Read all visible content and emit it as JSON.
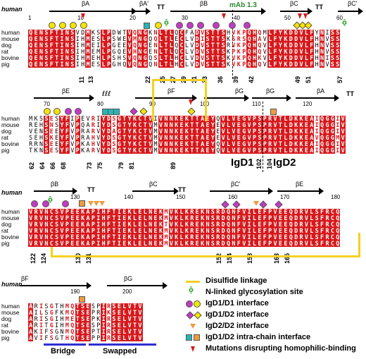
{
  "reference_species": "human",
  "species": [
    "human",
    "mouse",
    "dog",
    "rat",
    "bovine",
    "pig"
  ],
  "blocks": [
    {
      "ss_labels": [
        "βA",
        "βA'",
        "TT",
        "βB",
        "βC",
        "TT",
        "βC'"
      ],
      "ruler": [
        "1",
        "10",
        "20",
        "30",
        "40",
        "50",
        "60"
      ],
      "mab_label": "mAb 1.3",
      "rows": [
        "QENSFTINSVDMKSLPDWTVQNGKNLTLQCFADVSTTSHVKPQHQMLFYKDDVLFYNISS",
        "QENSFTINSIHMESLPSWEVMNGQQLTLECLVDISTTSKSRSQHAVLFYKDDVLFHNVSS",
        "QENSFTINSIHMEILPGEEVQNGENLTLQCLVDVSTTSRVKPQHQVLFYKDDVLFHNVSS",
        "QENSFTINSIHMEMLPGQEVHNGENLTLQCLVDVSTTSKPKPQHQVLFYKDDVLFHNVSS",
        "QENSFTINSIHMEHLPSHSVQNGQSLTLHCLVDVSTTSKVKPQHKVLFYKDDVLFHNISS",
        "QENSFTINSIHMESLPGHQVQNGQNLTLHCLVDVSTTSKVKPQHQVLFYKDDVLFHNVSS"
      ],
      "positions": [
        "11",
        "13",
        "22",
        "25",
        "27",
        "29",
        "31",
        "33",
        "36",
        "39",
        "42",
        "49",
        "51",
        "57"
      ]
    },
    {
      "ss_labels": [
        "βE",
        "βF",
        "βG",
        "βG",
        "βA",
        "TT"
      ],
      "ruler": [
        "70",
        "80",
        "90",
        "100",
        "110",
        "120"
      ],
      "rows": [
        "MKSSESYFIPEVRIYDSGTYKCTVIVNNKEKTTAEYQVLVEGVPSPRVTLDKKEAIQGGIV",
        "REHSNSYFVPQARIYDSGTYKCTVMVNNKEKTTAEYEVLVEGVPSPRVTLDKKEAIQGGIV",
        "VENSEEYFVPRARVYDAGTYKCTVMVNNKEKTTAEYEVLVEGVPSPRVTLDKKEAIQGGIV",
        "SEHSKEYFVPRAHVYDSGTYKCTVMVNNKEKTTAEYEVLVEGVPSPRVTLDKKEAVQGGMV",
        "RRNSEEYFVPKAHVYDSGTYKCTVMVNNKEKTTAEYQVLVEGVPSPRVTLDKKEAIQGGIV",
        "TKNSESYFVPKARVYDSGTYKCTVMVNNKEKTTAEYQVLVEGVPSPRVTLDKKEAIQGGIV"
      ],
      "positions": [
        "62",
        "64",
        "66",
        "68",
        "73",
        "75",
        "79",
        "81",
        "89",
        "102",
        "104"
      ],
      "domain_labels": [
        "IgD1",
        "IgD2"
      ]
    },
    {
      "ss_labels": [
        "βB",
        "TT",
        "βC",
        "TT",
        "βC'",
        "βE"
      ],
      "ruler": [
        "130",
        "140",
        "150",
        "160",
        "170",
        "180"
      ],
      "rows": [
        "VRVNCSVPEEKAPIHFTIEKLELNEKMVKLKREKNSRDQNFVILEFPVEEQDRVLSFRCQ",
        "VRVNCSVPEEKAPIHFTIEKLELNEKMVKLKREKNSRDQNFVILEFPVEEQDRVLSFRCQ",
        "VRVNCSVPEEKAPIHFTIEKLELNEKTVKLKREKNSRDQNFVILEFPVEEQDRVLSFRCQ",
        "VRVNCSVPEEKAPIHFTIEKLELNEKMVKLKREKNSRDQNFVILEFPVEEQDRVLSFRCQ",
        "VRVNCSVPEEKAPIHFTIEKLELNEKMVKLKREKNSRDQNFVILEFPVEEQDRVLSFRCQ",
        "VRVNCSVPEEKAPIHFTIEKLELNEKMVKLKREKNSRDQNFVILEFPVEEQDRVLSFRCQ"
      ],
      "positions": [
        "122",
        "124",
        "130",
        "131",
        "152",
        "154",
        "158",
        "163",
        "165"
      ]
    },
    {
      "ss_labels": [
        "βF",
        "βG"
      ],
      "ruler": [
        "190",
        "200"
      ],
      "rows": [
        "ARISGTHMQTSESPIRSELVTV",
        "AILSGFKMQTSEPRIKSELVTV",
        "ARISGIHMETSEPKIRSELVTV",
        "ARITGIHMQTSESPIRSELVTV",
        "AKIFSGNMQTSEPTIRSELVTV",
        "AVIFSGTHQTSEPPIRSELVTV"
      ],
      "region_labels": [
        "Bridge",
        "Swapped"
      ]
    }
  ],
  "legend": [
    {
      "symbol": "disulfide-line",
      "label": "Disulfide linkage"
    },
    {
      "symbol": "glycosylation-icon",
      "label": "N-linked glycosylation site"
    },
    {
      "symbol": "magenta-circle-icon",
      "label": "IgD1/D1 interface"
    },
    {
      "symbol": "magenta-diamond-icon",
      "label": "IgD1/D2 interface"
    },
    {
      "symbol": "orange-triangle-icon",
      "label": "IgD2/D2 interface"
    },
    {
      "symbol": "teal-square-icon",
      "label": "IgD1/D2 intra-chain interface"
    },
    {
      "symbol": "red-arrowhead-icon",
      "label": "Mutations disrupting homophilic-binding"
    }
  ],
  "colors": {
    "conserved_bg": "#d7191c",
    "similar_text": "#d7191c",
    "box_border": "#3b5ea8",
    "disulfide": "#f5d020",
    "glycosylation": "#2aa82a",
    "interface_magenta": "#c23bc2",
    "interface_yellow": "#f5e400",
    "orange": "#f09a3e",
    "teal": "#2ab5b5",
    "region_bar": "#2f2fd0"
  }
}
